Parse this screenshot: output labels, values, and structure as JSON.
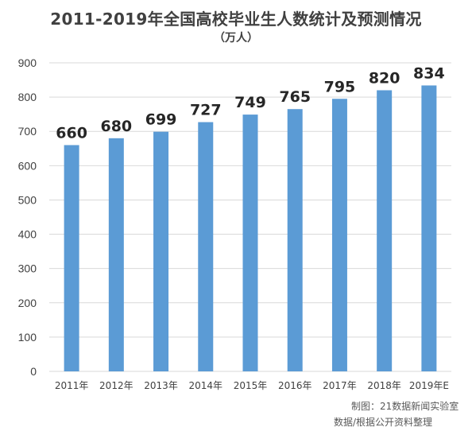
{
  "chart_data": {
    "type": "bar",
    "title": "2011-2019年全国高校毕业生人数统计及预测情况",
    "subtitle": "（万人）",
    "categories": [
      "2011年",
      "2012年",
      "2013年",
      "2014年",
      "2015年",
      "2016年",
      "2017年",
      "2018年",
      "2019年E"
    ],
    "values": [
      660,
      680,
      699,
      727,
      749,
      765,
      795,
      820,
      834
    ],
    "ylim": [
      0,
      900
    ],
    "yticks": [
      0,
      100,
      200,
      300,
      400,
      500,
      600,
      700,
      800,
      900
    ],
    "grid": true,
    "data_labels": true,
    "bar_color": "#5b9bd5",
    "gridline_color": "#d9d9d9",
    "label_color": "#262626"
  },
  "credits": {
    "line1": "制图：21数据新闻实验室",
    "line2": "数据/根据公开资料整理"
  }
}
